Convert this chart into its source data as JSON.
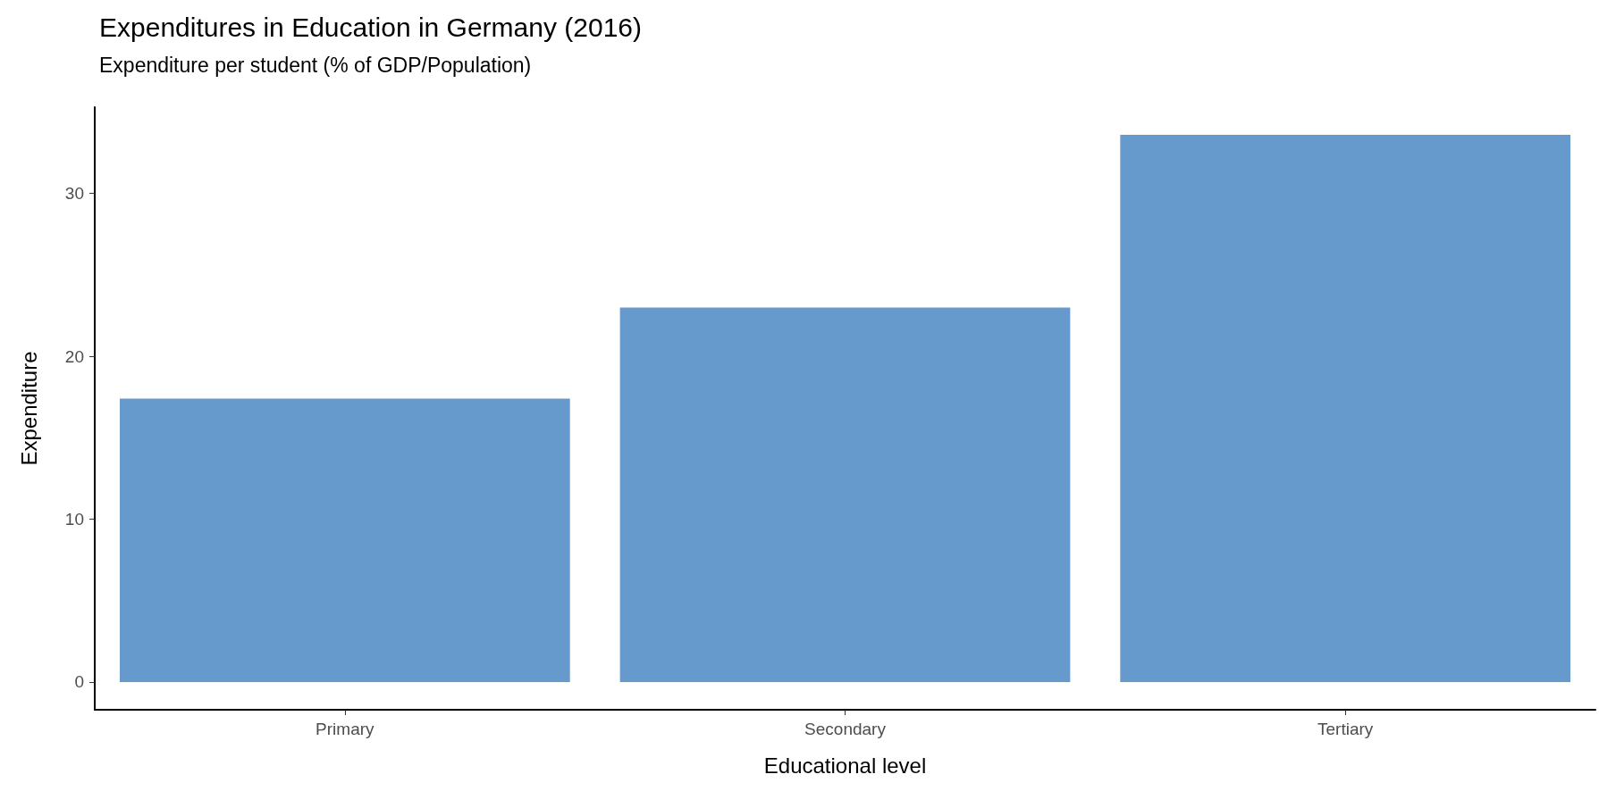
{
  "chart_data": {
    "type": "bar",
    "title": "Expenditures in Education in Germany (2016)",
    "subtitle": "Expenditure per student (% of GDP/Population)",
    "xlabel": "Educational level",
    "ylabel": "Expenditure",
    "categories": [
      "Primary",
      "Secondary",
      "Tertiary"
    ],
    "values": [
      17.4,
      23.0,
      33.6
    ],
    "color": "#6699cc",
    "ylim": [
      -1.7,
      35.3
    ],
    "yticks": [
      0,
      10,
      20,
      30
    ],
    "grid": false
  }
}
